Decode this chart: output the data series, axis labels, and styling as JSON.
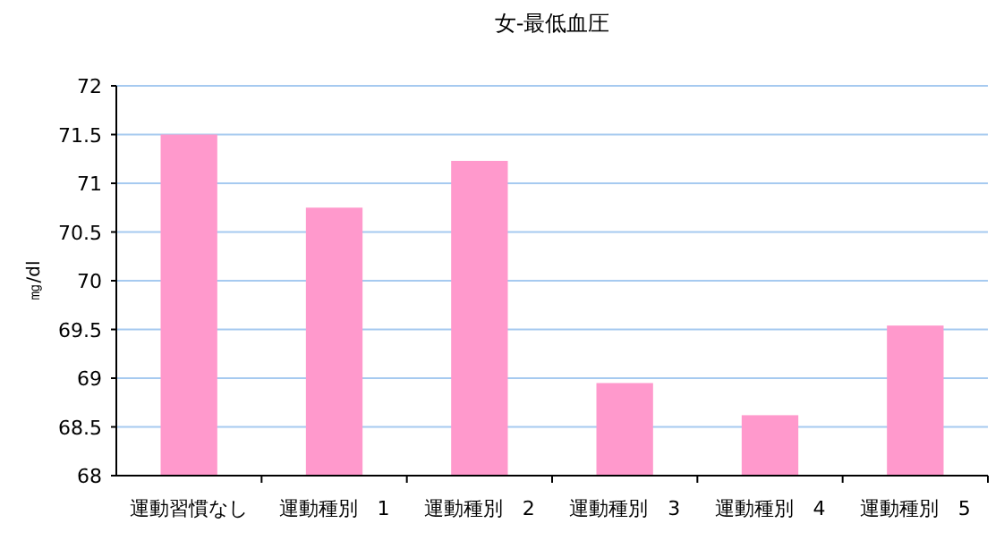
{
  "chart_data": {
    "type": "bar",
    "title": "女-最低血圧",
    "ylabel": "㎎/dl",
    "categories": [
      "運動習慣なし",
      "運動種別　1",
      "運動種別　2",
      "運動種別　3",
      "運動種別　4",
      "運動種別　5"
    ],
    "values": [
      71.5,
      70.75,
      71.23,
      68.95,
      68.62,
      69.54
    ],
    "color": "#ff99cc",
    "ylim": [
      68,
      72
    ],
    "yticks": [
      68,
      68.5,
      69,
      69.5,
      70,
      70.5,
      71,
      71.5,
      72
    ],
    "grid": "y"
  }
}
